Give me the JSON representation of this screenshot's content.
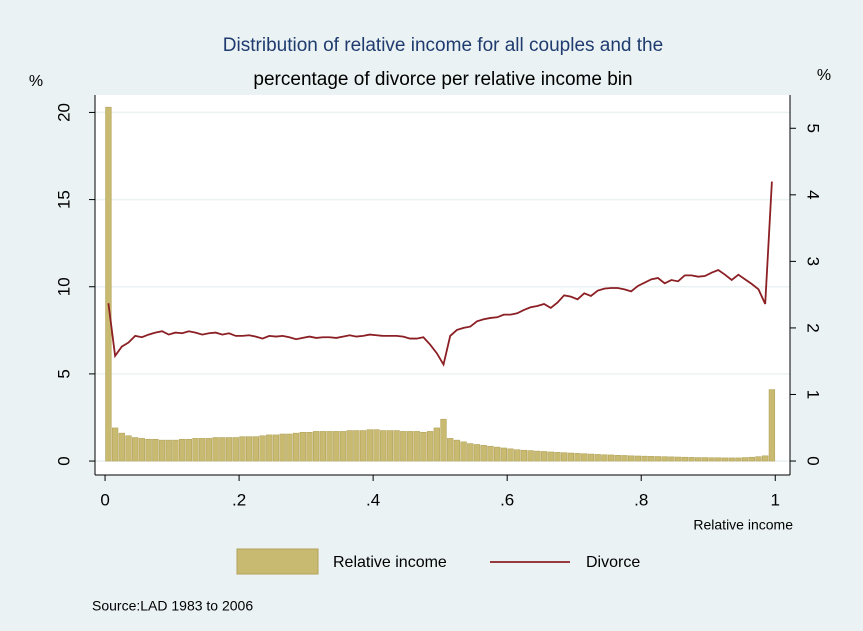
{
  "chart_data": {
    "type": "histogram",
    "title": [
      "Distribution of relative income for all couples and the",
      "percentage of divorce per relative income bin"
    ],
    "y_label": "%",
    "y2_label": "%",
    "x_label": "Relative income",
    "source": "Source:LAD 1983 to 2006",
    "xlim": [
      -0.015,
      1.022
    ],
    "xticks": [
      0,
      {
        "value": 0.2,
        "label": ".2"
      },
      {
        "value": 0.4,
        "label": ".4"
      },
      {
        "value": 0.6,
        "label": ".6"
      },
      {
        "value": 0.8,
        "label": ".8"
      },
      1
    ],
    "ylim": [
      -0.8,
      21.0
    ],
    "yticks": [
      0,
      5,
      10,
      15,
      20
    ],
    "y2lim": [
      -0.21,
      5.5
    ],
    "y2ticks": [
      0,
      1,
      2,
      3,
      4,
      5
    ],
    "grid": true,
    "legend": "bottom",
    "series": [
      {
        "name": "Relative income",
        "type": "histogram",
        "color": "#c9ba72",
        "bins": [
          0,
          0.01,
          0.02,
          0.03,
          0.04,
          0.05,
          0.06,
          0.07,
          0.08,
          0.09,
          0.1,
          0.11,
          0.12,
          0.13,
          0.14,
          0.15,
          0.16,
          0.17,
          0.18,
          0.19,
          0.2,
          0.21,
          0.22,
          0.23,
          0.24,
          0.25,
          0.26,
          0.27,
          0.28,
          0.29,
          0.3,
          0.31,
          0.32,
          0.33,
          0.34,
          0.35,
          0.36,
          0.37,
          0.38,
          0.39,
          0.4,
          0.41,
          0.42,
          0.43,
          0.44,
          0.45,
          0.46,
          0.47,
          0.48,
          0.49,
          0.5,
          0.51,
          0.52,
          0.53,
          0.54,
          0.55,
          0.56,
          0.57,
          0.58,
          0.59,
          0.6,
          0.61,
          0.62,
          0.63,
          0.64,
          0.65,
          0.66,
          0.67,
          0.68,
          0.69,
          0.7,
          0.71,
          0.72,
          0.73,
          0.74,
          0.75,
          0.76,
          0.77,
          0.78,
          0.79,
          0.8,
          0.81,
          0.82,
          0.83,
          0.84,
          0.85,
          0.86,
          0.87,
          0.88,
          0.89,
          0.9,
          0.91,
          0.92,
          0.93,
          0.94,
          0.95,
          0.96,
          0.97,
          0.98,
          0.99,
          1
        ],
        "values": [
          20.3,
          1.9,
          1.6,
          1.45,
          1.35,
          1.3,
          1.25,
          1.25,
          1.2,
          1.2,
          1.2,
          1.25,
          1.25,
          1.3,
          1.3,
          1.3,
          1.35,
          1.35,
          1.35,
          1.35,
          1.4,
          1.4,
          1.4,
          1.45,
          1.5,
          1.5,
          1.55,
          1.55,
          1.6,
          1.65,
          1.65,
          1.7,
          1.7,
          1.7,
          1.7,
          1.7,
          1.75,
          1.75,
          1.75,
          1.8,
          1.8,
          1.75,
          1.75,
          1.75,
          1.7,
          1.7,
          1.7,
          1.65,
          1.7,
          1.9,
          2.4,
          1.3,
          1.2,
          1.1,
          1.0,
          0.95,
          0.9,
          0.85,
          0.8,
          0.75,
          0.7,
          0.65,
          0.62,
          0.6,
          0.57,
          0.55,
          0.52,
          0.5,
          0.48,
          0.46,
          0.44,
          0.42,
          0.4,
          0.38,
          0.36,
          0.35,
          0.33,
          0.32,
          0.3,
          0.29,
          0.28,
          0.27,
          0.26,
          0.25,
          0.24,
          0.23,
          0.22,
          0.21,
          0.2,
          0.2,
          0.19,
          0.19,
          0.18,
          0.18,
          0.18,
          0.2,
          0.22,
          0.25,
          0.3,
          4.1
        ]
      },
      {
        "name": "Divorce",
        "type": "line",
        "axis": "y2",
        "color": "#8b1f24",
        "x": [
          0.005,
          0.015,
          0.025,
          0.035,
          0.045,
          0.055,
          0.065,
          0.075,
          0.085,
          0.095,
          0.105,
          0.115,
          0.125,
          0.135,
          0.145,
          0.155,
          0.165,
          0.175,
          0.185,
          0.195,
          0.205,
          0.215,
          0.225,
          0.235,
          0.245,
          0.255,
          0.265,
          0.275,
          0.285,
          0.295,
          0.305,
          0.315,
          0.325,
          0.335,
          0.345,
          0.355,
          0.365,
          0.375,
          0.385,
          0.395,
          0.405,
          0.415,
          0.425,
          0.435,
          0.445,
          0.455,
          0.465,
          0.475,
          0.485,
          0.495,
          0.505,
          0.515,
          0.525,
          0.535,
          0.545,
          0.555,
          0.565,
          0.575,
          0.585,
          0.595,
          0.605,
          0.615,
          0.625,
          0.635,
          0.645,
          0.655,
          0.665,
          0.675,
          0.685,
          0.695,
          0.705,
          0.715,
          0.725,
          0.735,
          0.745,
          0.755,
          0.765,
          0.775,
          0.785,
          0.795,
          0.805,
          0.815,
          0.825,
          0.835,
          0.845,
          0.855,
          0.865,
          0.875,
          0.885,
          0.895,
          0.905,
          0.915,
          0.925,
          0.935,
          0.945,
          0.955,
          0.965,
          0.975,
          0.985,
          0.995
        ],
        "values": [
          2.37,
          1.58,
          1.72,
          1.78,
          1.88,
          1.86,
          1.9,
          1.93,
          1.95,
          1.9,
          1.93,
          1.92,
          1.95,
          1.93,
          1.9,
          1.92,
          1.93,
          1.9,
          1.92,
          1.88,
          1.88,
          1.89,
          1.87,
          1.84,
          1.88,
          1.87,
          1.88,
          1.86,
          1.83,
          1.85,
          1.87,
          1.85,
          1.86,
          1.86,
          1.85,
          1.87,
          1.89,
          1.87,
          1.88,
          1.9,
          1.89,
          1.88,
          1.88,
          1.88,
          1.87,
          1.84,
          1.84,
          1.86,
          1.75,
          1.62,
          1.45,
          1.88,
          1.97,
          2.0,
          2.02,
          2.1,
          2.13,
          2.15,
          2.16,
          2.2,
          2.2,
          2.22,
          2.27,
          2.31,
          2.33,
          2.36,
          2.3,
          2.38,
          2.49,
          2.47,
          2.43,
          2.52,
          2.48,
          2.56,
          2.59,
          2.6,
          2.6,
          2.58,
          2.55,
          2.63,
          2.68,
          2.73,
          2.75,
          2.67,
          2.72,
          2.7,
          2.79,
          2.79,
          2.77,
          2.78,
          2.83,
          2.87,
          2.8,
          2.72,
          2.8,
          2.73,
          2.66,
          2.58,
          2.36,
          4.2
        ]
      }
    ]
  }
}
